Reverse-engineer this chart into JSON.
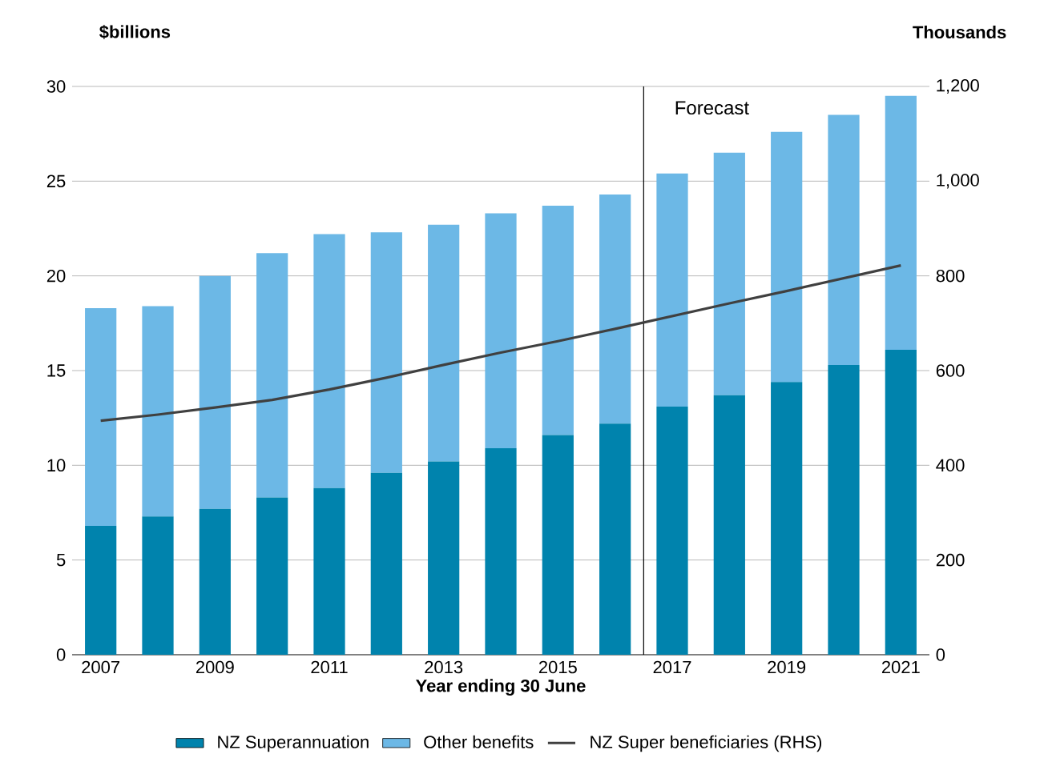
{
  "chart_data": {
    "type": "bar",
    "stacked": true,
    "categories": [
      "2007",
      null,
      "2009",
      null,
      "2011",
      null,
      "2013",
      null,
      "2015",
      null,
      "2017",
      null,
      "2019",
      null,
      "2021"
    ],
    "series": [
      {
        "name": "NZ Superannuation",
        "color": "#0083ad",
        "values": [
          6.8,
          7.3,
          7.7,
          8.3,
          8.8,
          9.6,
          10.2,
          10.9,
          11.6,
          12.2,
          13.1,
          13.7,
          14.4,
          15.3,
          16.1
        ]
      },
      {
        "name": "Other benefits",
        "color": "#6cb8e6",
        "values": [
          11.5,
          11.1,
          12.3,
          12.9,
          13.4,
          12.7,
          12.5,
          12.4,
          12.1,
          12.1,
          12.3,
          12.8,
          13.2,
          13.2,
          13.4
        ]
      },
      {
        "name": "NZ Super beneficiaries (RHS)",
        "type": "line",
        "axis": "y2",
        "color": "#404040",
        "values": [
          494,
          507,
          522,
          538,
          560,
          585,
          612,
          638,
          662,
          688,
          715,
          742,
          768,
          795,
          822
        ]
      }
    ],
    "xlabel": "Year ending 30 June",
    "ylabel": "$billions",
    "y2label": "Thousands",
    "ylim": [
      0,
      30
    ],
    "yticks": [
      0,
      5,
      10,
      15,
      20,
      25,
      30
    ],
    "y2lim": [
      0,
      1200
    ],
    "y2ticks": [
      0,
      200,
      400,
      600,
      800,
      {
        "value": 1000,
        "label": "1,000"
      },
      {
        "value": 1200,
        "label": "1,200"
      }
    ],
    "grid": "y",
    "legend": "bottom",
    "ref_lines": [
      {
        "axis": "x",
        "value": "2017",
        "label": "Forecast",
        "color": "#000000"
      }
    ]
  }
}
